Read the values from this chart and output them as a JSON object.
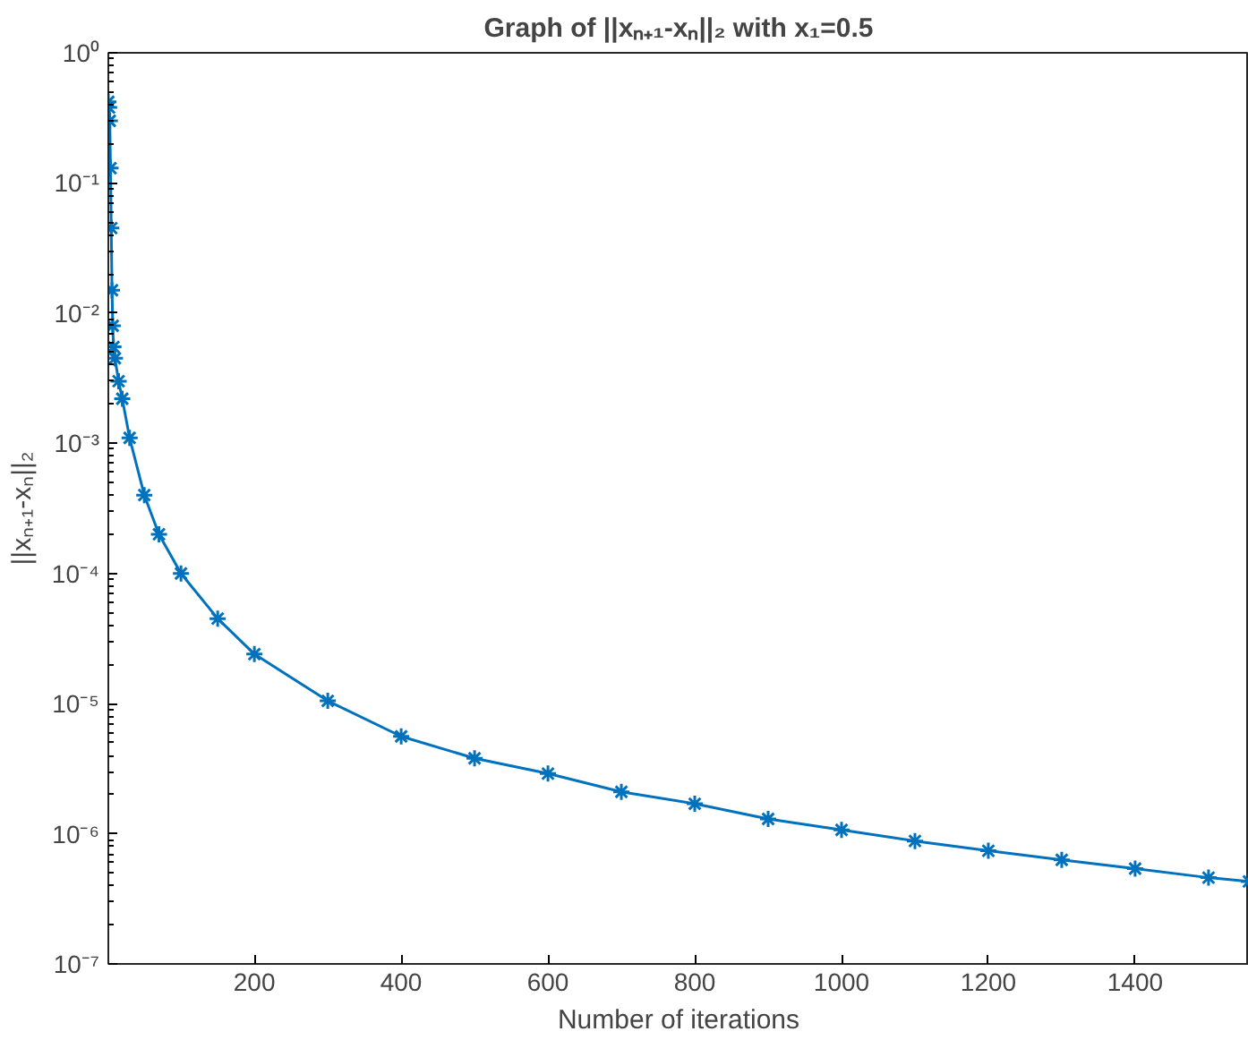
{
  "chart_data": {
    "type": "line",
    "title": "Graph of ||xₙ₊₁-xₙ||₂ with x₁=0.5",
    "xlabel": "Number of iterations",
    "ylabel": "||xₙ₊₁-xₙ||₂",
    "log": "y",
    "grid": false,
    "marker": "cross",
    "line_style": "solid",
    "xlim": [
      1,
      1555
    ],
    "xticks": [
      200,
      400,
      600,
      800,
      1000,
      1200,
      1400
    ],
    "ylim": [
      1e-07,
      1
    ],
    "yticks": [
      {
        "value": 1e-07,
        "label": "10⁻⁷"
      },
      {
        "value": 1e-06,
        "label": "10⁻⁶"
      },
      {
        "value": 1e-05,
        "label": "10⁻⁵"
      },
      {
        "value": 0.0001,
        "label": "10⁻⁴"
      },
      {
        "value": 0.001,
        "label": "10⁻³"
      },
      {
        "value": 0.01,
        "label": "10⁻²"
      },
      {
        "value": 0.1,
        "label": "10⁻¹"
      },
      {
        "value": 1,
        "label": "10⁰"
      }
    ],
    "series": [
      {
        "color": "#0072bd",
        "x": [
          1,
          2,
          3,
          4,
          5,
          6,
          7,
          8,
          10,
          15,
          20,
          30,
          50,
          70,
          100,
          150,
          200,
          300,
          400,
          500,
          600,
          700,
          800,
          900,
          1000,
          1100,
          1200,
          1300,
          1400,
          1500,
          1555
        ],
        "values": [
          0.42,
          0.38,
          0.3,
          0.13,
          0.045,
          0.015,
          0.008,
          0.0055,
          0.0045,
          0.003,
          0.0022,
          0.0011,
          0.0004,
          0.0002,
          0.0001,
          4.5e-05,
          2.4e-05,
          1.05e-05,
          5.6e-06,
          3.8e-06,
          2.9e-06,
          2.1e-06,
          1.7e-06,
          1.3e-06,
          1.07e-06,
          8.8e-07,
          7.4e-07,
          6.3e-07,
          5.4e-07,
          4.6e-07,
          4.3e-07
        ]
      }
    ]
  }
}
